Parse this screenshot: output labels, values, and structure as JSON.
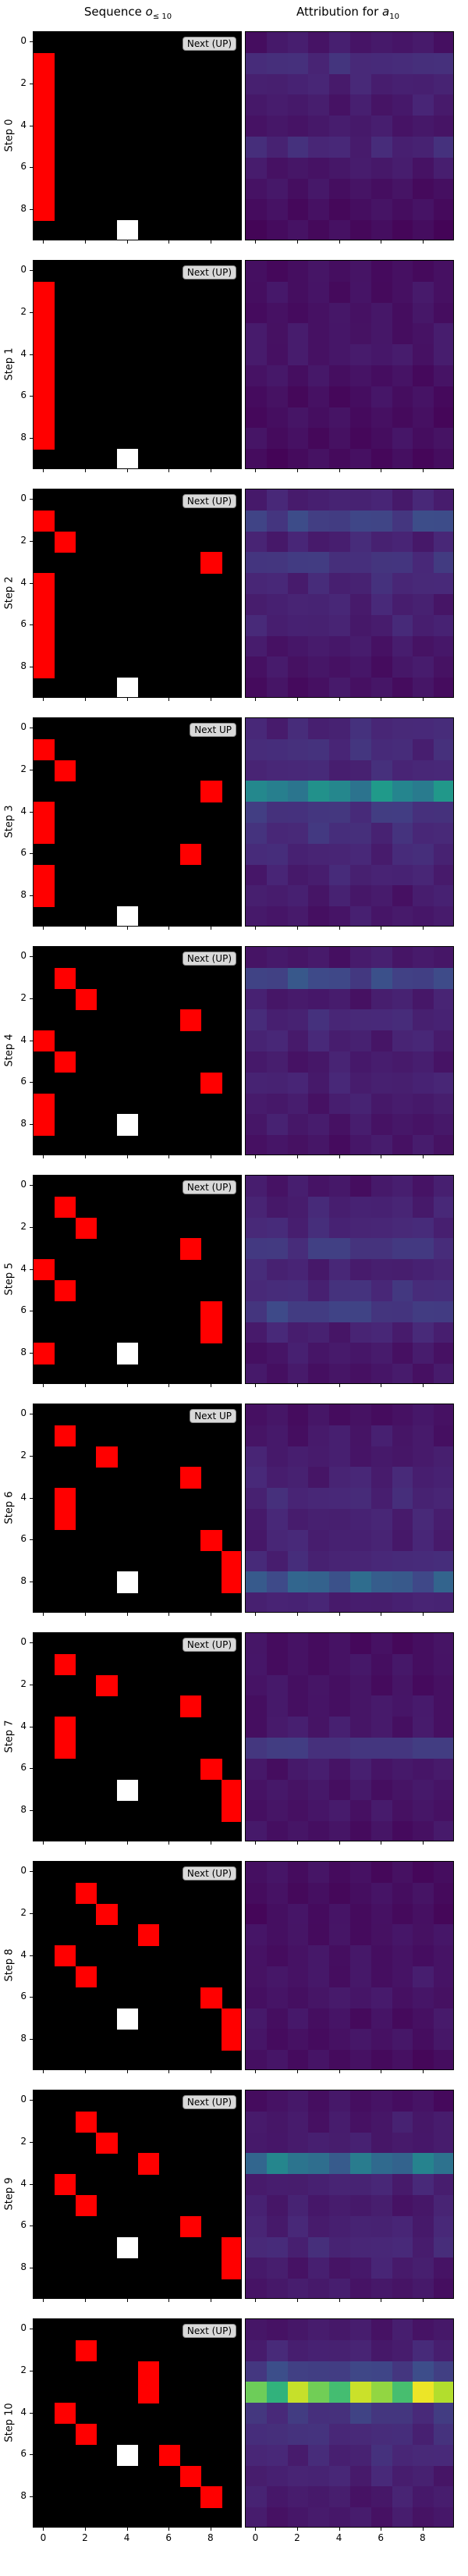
{
  "column_titles": {
    "left_main": "Sequence ",
    "left_sym": "o",
    "left_sub": "≤ 10",
    "right_main": "Attribution for ",
    "right_sym": "a",
    "right_sub": "10"
  },
  "colors": {
    "background": "#000000",
    "red": "#ff0000",
    "white": "#ffffff",
    "badge": "#d9d9d9"
  },
  "chart_data": {
    "type": "heatmap",
    "grid_size": [
      10,
      10
    ],
    "y_ticks": [
      0,
      2,
      4,
      6,
      8
    ],
    "x_ticks": [
      0,
      2,
      4,
      6,
      8
    ],
    "steps": [
      {
        "label": "Step 0",
        "badge": "Next (UP)",
        "red_cells": [
          [
            0,
            1
          ],
          [
            0,
            2
          ],
          [
            0,
            3
          ],
          [
            0,
            4
          ],
          [
            0,
            5
          ],
          [
            0,
            6
          ],
          [
            0,
            7
          ],
          [
            0,
            8
          ]
        ],
        "white_cells": [
          [
            4,
            9
          ]
        ],
        "attribution_rows": [
          0.05,
          0.12,
          0.08,
          0.06,
          0.05,
          0.1,
          0.05,
          0.03,
          0.02,
          0.01
        ]
      },
      {
        "label": "Step 1",
        "badge": "Next (UP)",
        "red_cells": [
          [
            0,
            1
          ],
          [
            0,
            2
          ],
          [
            0,
            3
          ],
          [
            0,
            4
          ],
          [
            0,
            5
          ],
          [
            0,
            6
          ],
          [
            0,
            7
          ],
          [
            0,
            8
          ]
        ],
        "white_cells": [
          [
            4,
            9
          ]
        ],
        "attribution_rows": [
          0.02,
          0.03,
          0.03,
          0.04,
          0.05,
          0.03,
          0.02,
          0.02,
          0.02,
          0.01
        ]
      },
      {
        "label": "Step 2",
        "badge": "Next (UP)",
        "red_cells": [
          [
            0,
            1
          ],
          [
            1,
            2
          ],
          [
            8,
            3
          ],
          [
            0,
            4
          ],
          [
            0,
            5
          ],
          [
            0,
            6
          ],
          [
            0,
            7
          ],
          [
            0,
            8
          ]
        ],
        "white_cells": [
          [
            4,
            9
          ]
        ],
        "attribution_rows": [
          0.08,
          0.2,
          0.08,
          0.15,
          0.1,
          0.08,
          0.08,
          0.05,
          0.04,
          0.03
        ]
      },
      {
        "label": "Step 3",
        "badge": "Next UP",
        "red_cells": [
          [
            0,
            1
          ],
          [
            1,
            2
          ],
          [
            8,
            3
          ],
          [
            0,
            4
          ],
          [
            0,
            5
          ],
          [
            7,
            6
          ],
          [
            0,
            7
          ],
          [
            0,
            8
          ]
        ],
        "white_cells": [
          [
            4,
            9
          ]
        ],
        "attribution_rows": [
          0.1,
          0.12,
          0.1,
          0.5,
          0.15,
          0.12,
          0.1,
          0.08,
          0.06,
          0.05
        ]
      },
      {
        "label": "Step 4",
        "badge": "Next (UP)",
        "red_cells": [
          [
            1,
            1
          ],
          [
            2,
            2
          ],
          [
            7,
            3
          ],
          [
            0,
            4
          ],
          [
            1,
            5
          ],
          [
            8,
            6
          ],
          [
            0,
            7
          ],
          [
            0,
            8
          ]
        ],
        "white_cells": [
          [
            4,
            8
          ]
        ],
        "attribution_rows": [
          0.05,
          0.22,
          0.06,
          0.1,
          0.08,
          0.06,
          0.08,
          0.06,
          0.05,
          0.04
        ]
      },
      {
        "label": "Step 5",
        "badge": "Next (UP)",
        "red_cells": [
          [
            1,
            1
          ],
          [
            2,
            2
          ],
          [
            7,
            3
          ],
          [
            0,
            4
          ],
          [
            1,
            5
          ],
          [
            8,
            6
          ],
          [
            8,
            7
          ],
          [
            0,
            8
          ]
        ],
        "white_cells": [
          [
            4,
            8
          ]
        ],
        "attribution_rows": [
          0.05,
          0.08,
          0.1,
          0.16,
          0.08,
          0.12,
          0.18,
          0.08,
          0.05,
          0.04
        ]
      },
      {
        "label": "Step 6",
        "badge": "Next UP",
        "red_cells": [
          [
            1,
            1
          ],
          [
            3,
            2
          ],
          [
            7,
            3
          ],
          [
            1,
            4
          ],
          [
            1,
            5
          ],
          [
            8,
            6
          ],
          [
            9,
            7
          ],
          [
            9,
            8
          ]
        ],
        "white_cells": [
          [
            4,
            8
          ]
        ],
        "attribution_rows": [
          0.03,
          0.05,
          0.06,
          0.08,
          0.1,
          0.08,
          0.08,
          0.1,
          0.3,
          0.08
        ]
      },
      {
        "label": "Step 7",
        "badge": "Next (UP)",
        "red_cells": [
          [
            1,
            1
          ],
          [
            3,
            2
          ],
          [
            7,
            3
          ],
          [
            1,
            4
          ],
          [
            1,
            5
          ],
          [
            8,
            6
          ],
          [
            9,
            7
          ],
          [
            9,
            8
          ]
        ],
        "white_cells": [
          [
            4,
            7
          ]
        ],
        "attribution_rows": [
          0.02,
          0.03,
          0.03,
          0.04,
          0.05,
          0.16,
          0.05,
          0.04,
          0.04,
          0.03
        ]
      },
      {
        "label": "Step 8",
        "badge": "Next (UP)",
        "red_cells": [
          [
            2,
            1
          ],
          [
            3,
            2
          ],
          [
            5,
            3
          ],
          [
            1,
            4
          ],
          [
            2,
            5
          ],
          [
            8,
            6
          ],
          [
            9,
            7
          ],
          [
            9,
            8
          ]
        ],
        "white_cells": [
          [
            4,
            7
          ]
        ],
        "attribution_rows": [
          0.02,
          0.02,
          0.02,
          0.03,
          0.03,
          0.04,
          0.04,
          0.03,
          0.03,
          0.02
        ]
      },
      {
        "label": "Step 9",
        "badge": "Next (UP)",
        "red_cells": [
          [
            2,
            1
          ],
          [
            3,
            2
          ],
          [
            5,
            3
          ],
          [
            1,
            4
          ],
          [
            2,
            5
          ],
          [
            7,
            6
          ],
          [
            9,
            7
          ],
          [
            9,
            8
          ]
        ],
        "white_cells": [
          [
            4,
            7
          ]
        ],
        "attribution_rows": [
          0.03,
          0.05,
          0.06,
          0.4,
          0.08,
          0.06,
          0.08,
          0.1,
          0.06,
          0.05
        ]
      },
      {
        "label": "Step 10",
        "badge": "Next (UP)",
        "red_cells": [
          [
            2,
            1
          ],
          [
            5,
            2
          ],
          [
            5,
            3
          ],
          [
            1,
            4
          ],
          [
            2,
            5
          ],
          [
            6,
            6
          ],
          [
            7,
            7
          ],
          [
            8,
            8
          ]
        ],
        "white_cells": [
          [
            4,
            6
          ]
        ],
        "attribution_rows": [
          0.05,
          0.08,
          0.2,
          0.9,
          0.15,
          0.12,
          0.1,
          0.08,
          0.06,
          0.05
        ]
      }
    ]
  }
}
